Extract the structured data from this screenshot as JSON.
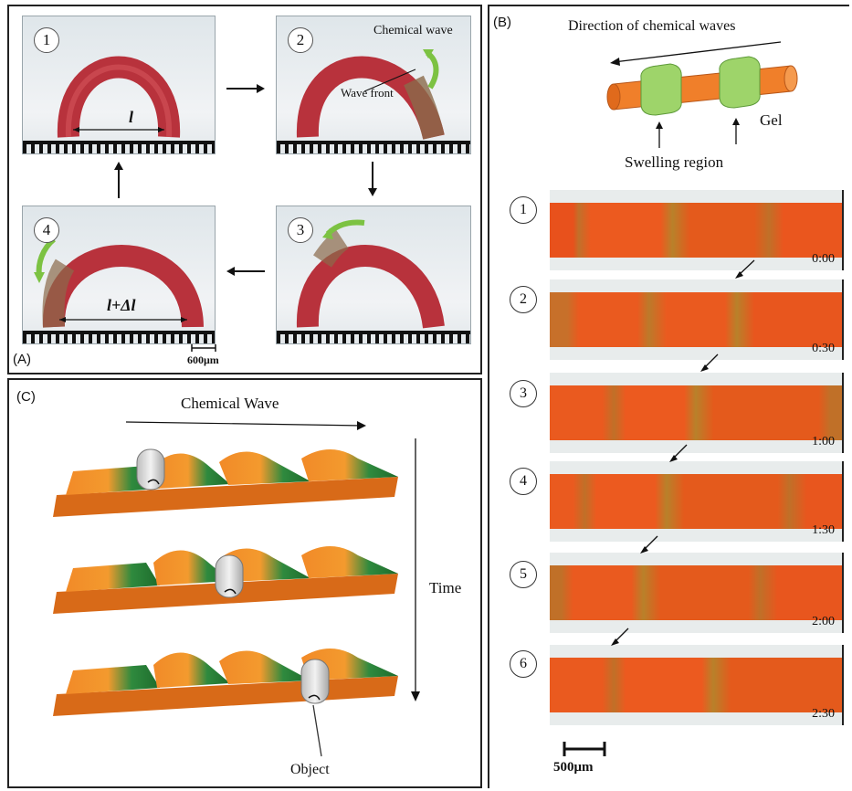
{
  "panel_a": {
    "label": "(A)",
    "frames": [
      {
        "number": "1",
        "length_label": "l"
      },
      {
        "number": "2",
        "wave_label": "Chemical wave",
        "front_label": "Wave front"
      },
      {
        "number": "3"
      },
      {
        "number": "4",
        "length_label": "l+Δl"
      }
    ],
    "scale_label": "600μm"
  },
  "panel_b": {
    "label": "(B)",
    "direction_label": "Direction of chemical waves",
    "gel_label": "Gel",
    "swelling_label": "Swelling region",
    "frames": [
      {
        "number": "1",
        "time": "0:00"
      },
      {
        "number": "2",
        "time": "0:30"
      },
      {
        "number": "3",
        "time": "1:00"
      },
      {
        "number": "4",
        "time": "1:30"
      },
      {
        "number": "5",
        "time": "2:00"
      },
      {
        "number": "6",
        "time": "2:30"
      }
    ],
    "scale_label": "500μm"
  },
  "panel_c": {
    "label": "(C)",
    "wave_label": "Chemical Wave",
    "time_label": "Time",
    "object_label": "Object"
  },
  "colors": {
    "gel_red": "#b8323c",
    "gel_orange": "#f0641e",
    "swelling_green": "#1f7a3a",
    "arrow_green": "#7cc242"
  }
}
